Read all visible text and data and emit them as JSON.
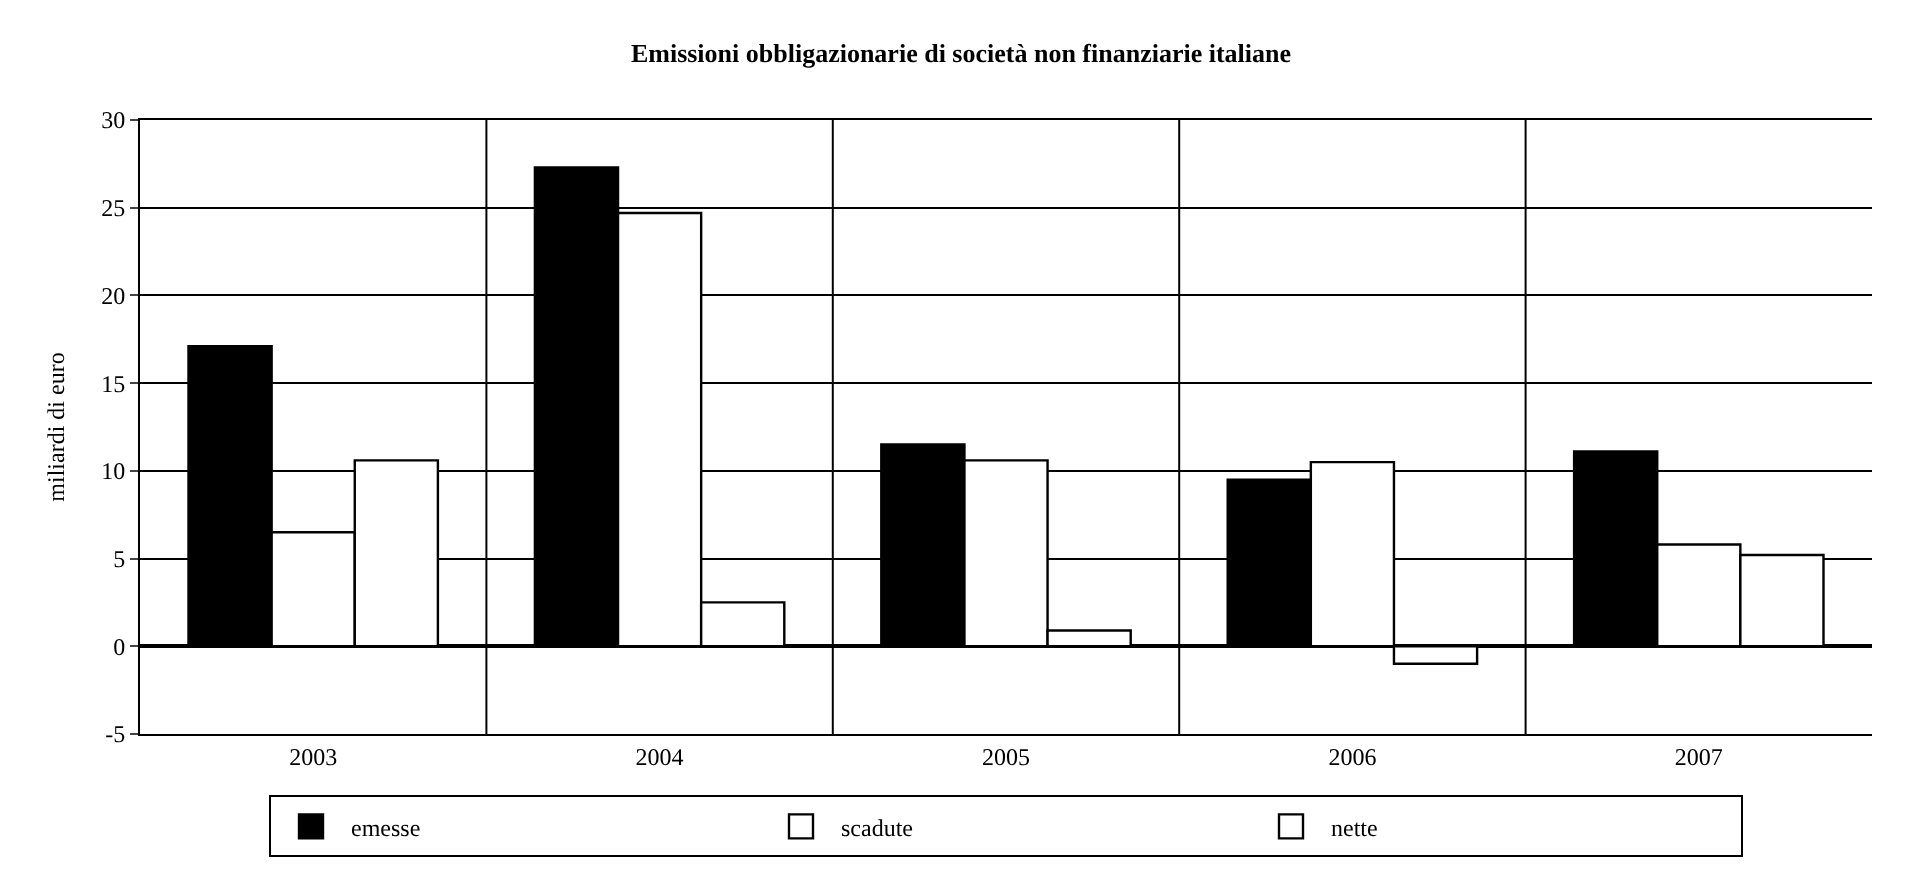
{
  "chart_data": {
    "type": "bar",
    "title": "Emissioni obbligazionarie di società non finanziarie italiane",
    "ylabel": "miliardi di euro",
    "categories": [
      "2003",
      "2004",
      "2005",
      "2006",
      "2007"
    ],
    "series": [
      {
        "name": "emesse",
        "color": "#000000",
        "values": [
          17.1,
          27.3,
          11.5,
          9.5,
          11.1
        ]
      },
      {
        "name": "scadute",
        "color": "#ffffff",
        "values": [
          6.5,
          24.7,
          10.6,
          10.5,
          5.8
        ]
      },
      {
        "name": "nette",
        "color": "#ffffff",
        "values": [
          10.6,
          2.5,
          0.9,
          -1.0,
          5.2
        ]
      }
    ],
    "ylim": [
      -5,
      30
    ],
    "yticks": [
      -5,
      0,
      5,
      10,
      15,
      20,
      25,
      30
    ],
    "grid": true,
    "legend": "bottom"
  }
}
